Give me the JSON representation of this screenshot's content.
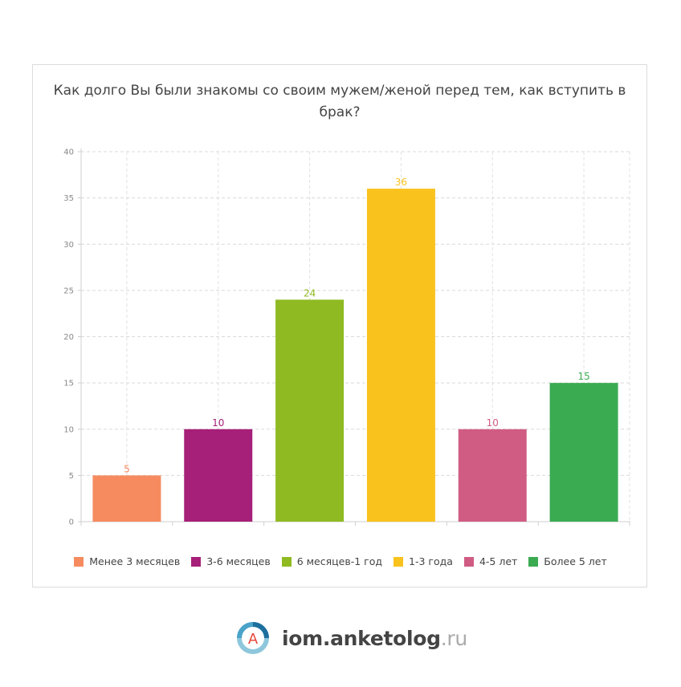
{
  "chart_data": {
    "type": "bar",
    "title": "Как долго Вы были знакомы со своим мужем/женой перед тем, как вступить в брак?",
    "categories": [
      "Менее 3 месяцев",
      "3-6 месяцев",
      "6 месяцев-1 год",
      "1-3 года",
      "4-5 лет",
      "Более 5 лет"
    ],
    "values": [
      5,
      10,
      24,
      36,
      10,
      15
    ],
    "colors": [
      "#f68b5f",
      "#a61f78",
      "#8fba22",
      "#f9c21d",
      "#d05c83",
      "#3bab52"
    ],
    "ylim": [
      0,
      40
    ],
    "yticks": [
      "0",
      "5",
      "10",
      "15",
      "20",
      "25",
      "30",
      "35",
      "40"
    ],
    "grid": true,
    "legend_position": "bottom"
  },
  "logo": {
    "letter": "A",
    "name": "iom.anketolog",
    "tld": ".ru"
  }
}
